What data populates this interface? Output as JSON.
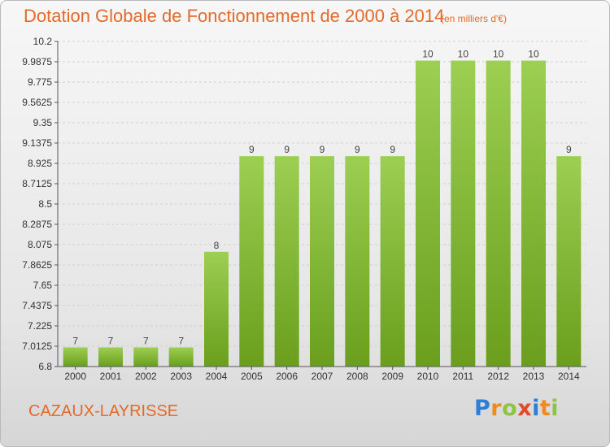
{
  "header": {
    "title": "Dotation Globale de Fonctionnement de 2000 à 2014",
    "unit_note": "(en milliers d'€)"
  },
  "footer": {
    "commune": "CAZAUX-LAYRISSE",
    "brand": "Proxiti",
    "brand_letters": [
      {
        "char": "P",
        "color": "#2b7fd6"
      },
      {
        "char": "r",
        "color": "#f08a1c"
      },
      {
        "char": "o",
        "color": "#8cc63e"
      },
      {
        "char": "x",
        "color": "#e04a2a"
      },
      {
        "char": "i",
        "color": "#2b7fd6"
      },
      {
        "char": "t",
        "color": "#f08a1c"
      },
      {
        "char": "i",
        "color": "#8cc63e"
      }
    ]
  },
  "chart_data": {
    "type": "bar",
    "title": "Dotation Globale de Fonctionnement de 2000 à 2014",
    "subtitle": "(en milliers d'€)",
    "xlabel": "",
    "ylabel": "",
    "categories": [
      "2000",
      "2001",
      "2002",
      "2003",
      "2004",
      "2005",
      "2006",
      "2007",
      "2008",
      "2009",
      "2010",
      "2011",
      "2012",
      "2013",
      "2014"
    ],
    "values": [
      7,
      7,
      7,
      7,
      8,
      9,
      9,
      9,
      9,
      9,
      10,
      10,
      10,
      10,
      9
    ],
    "data_labels": [
      "7",
      "7",
      "7",
      "7",
      "8",
      "9",
      "9",
      "9",
      "9",
      "9",
      "10",
      "10",
      "10",
      "10",
      "9"
    ],
    "ylim": [
      6.8,
      10.2
    ],
    "yticks": [
      6.8,
      7.0125,
      7.225,
      7.4375,
      7.65,
      7.8625,
      8.075,
      8.2875,
      8.5,
      8.7125,
      8.925,
      9.1375,
      9.35,
      9.5625,
      9.775,
      9.9875,
      10.2
    ],
    "ytick_labels": [
      "6.8",
      "7.0125",
      "7.225",
      "7.4375",
      "7.65",
      "7.8625",
      "8.075",
      "8.2875",
      "8.5",
      "8.7125",
      "8.925",
      "9.1375",
      "9.35",
      "9.5625",
      "9.775",
      "9.9875",
      "10.2"
    ],
    "grid": true,
    "legend": "none",
    "colors": {
      "bar_top": "#9ccf52",
      "bar_bottom": "#6a9e1c",
      "grid": "#d0d0d0",
      "axis": "#555555",
      "title": "#e36a2a"
    }
  }
}
